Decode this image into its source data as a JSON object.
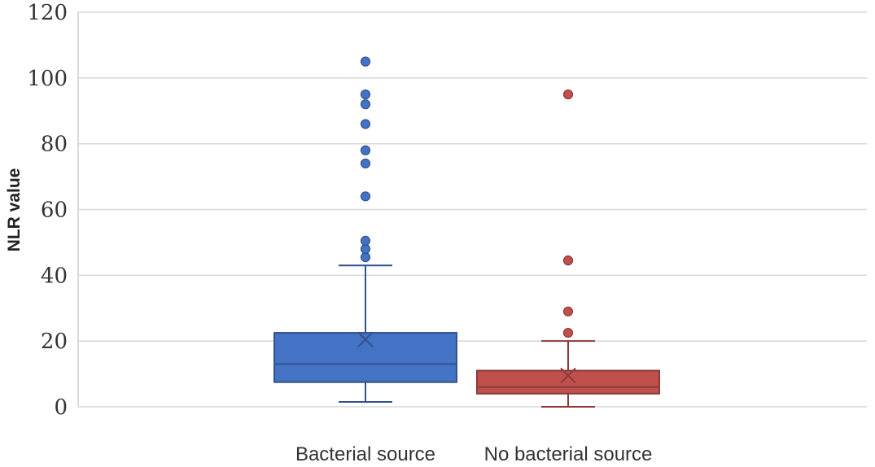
{
  "chart_data": {
    "type": "box",
    "ylabel": "NLR value",
    "xlabel": "",
    "ylim": [
      0,
      120
    ],
    "yticks": [
      0,
      20,
      40,
      60,
      80,
      100,
      120
    ],
    "grid": true,
    "categories": [
      "Bacterial source",
      "No bacterial source"
    ],
    "series": [
      {
        "category": "Bacterial source",
        "color": "#4472c4",
        "whisker_low": 1.5,
        "q1": 7.5,
        "median": 13,
        "q3": 22.5,
        "whisker_high": 43,
        "mean": 20.5,
        "outliers": [
          45.5,
          48,
          50.5,
          64,
          74,
          78,
          86,
          92,
          95,
          105
        ]
      },
      {
        "category": "No bacterial source",
        "color": "#c0504d",
        "whisker_low": 0,
        "q1": 4,
        "median": 6,
        "q3": 11,
        "whisker_high": 20,
        "mean": 9.5,
        "outliers": [
          22.5,
          29,
          44.5,
          95
        ]
      }
    ]
  }
}
